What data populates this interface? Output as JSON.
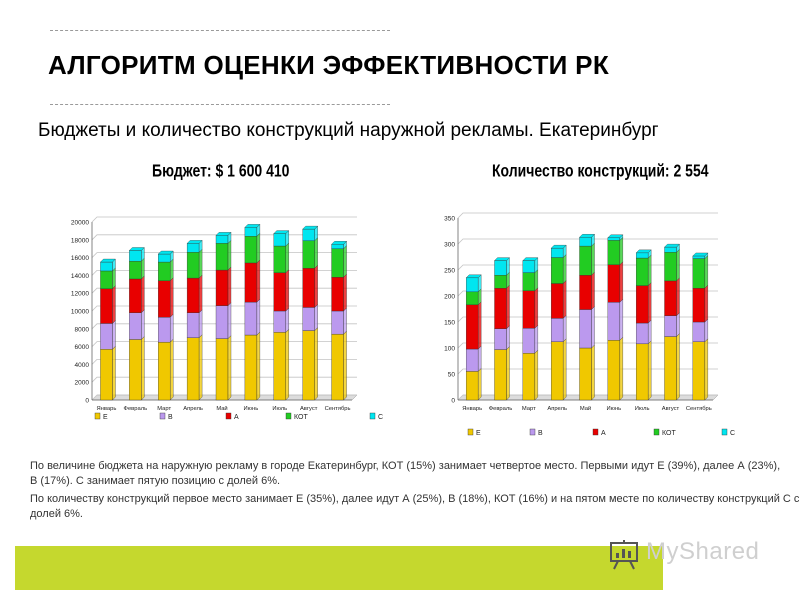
{
  "title": "АЛГОРИТМ ОЦЕНКИ ЭФФЕКТИВНОСТИ РК",
  "subtitle": "Бюджеты и количество конструкций наружной рекламы. Екатеринбург",
  "paragraphs": [
    "По величине бюджета на наружную рекламу в городе Екатеринбург, КОТ (15%) занимает четвертое место. Первыми идут Е (39%), далее А (23%), В (17%). С занимает пятую позицию с долей 6%.",
    "По количеству конструкций первое место занимает Е (35%), далее идут А (25%), В (18%), КОТ (16%) и на пятом месте по количеству конструкций С с долей 6%."
  ],
  "logo": {
    "text": "MyShared",
    "icon": "presentation-board-icon"
  },
  "colors": {
    "E": "#f0c800",
    "B": "#bb99ee",
    "A": "#e80000",
    "KOT": "#22cc22",
    "C": "#00e6f0",
    "band": "#c5d82e"
  },
  "chart_data": [
    {
      "type": "bar",
      "stacked": true,
      "title": "Бюджет: $ 1 600 410",
      "categories": [
        "Январь",
        "Февраль",
        "Март",
        "Апрель",
        "Май",
        "Июнь",
        "Июль",
        "Август",
        "Сентябрь"
      ],
      "ylim": [
        0,
        20000
      ],
      "yticks": [
        "0",
        "2000",
        "4000",
        "6000",
        "8000",
        "10000",
        "12000",
        "14000",
        "16000",
        "18000",
        "20000"
      ],
      "grid": true,
      "legend": "bottom",
      "series": [
        {
          "name": "Е",
          "color": "#f0c800",
          "values": [
            5700,
            6800,
            6500,
            7000,
            6900,
            7300,
            7600,
            7800,
            7400
          ]
        },
        {
          "name": "В",
          "color": "#bb99ee",
          "values": [
            2900,
            3000,
            2800,
            2800,
            3700,
            3700,
            2400,
            2600,
            2600
          ]
        },
        {
          "name": "А",
          "color": "#e80000",
          "values": [
            3900,
            3800,
            4100,
            3900,
            4000,
            4400,
            4300,
            4400,
            3800
          ]
        },
        {
          "name": "КОТ",
          "color": "#22cc22",
          "values": [
            2000,
            2000,
            2100,
            2900,
            3000,
            3000,
            3000,
            3100,
            3200
          ]
        },
        {
          "name": "С",
          "color": "#00e6f0",
          "values": [
            1000,
            1200,
            900,
            1000,
            900,
            1000,
            1400,
            1300,
            500
          ]
        }
      ]
    },
    {
      "type": "bar",
      "stacked": true,
      "title": "Количество конструкций: 2 554",
      "categories": [
        "Январь",
        "Февраль",
        "Март",
        "Апрель",
        "Май",
        "Июнь",
        "Июль",
        "Август",
        "Сентябрь"
      ],
      "ylim": [
        0,
        350
      ],
      "yticks": [
        "0",
        "50",
        "100",
        "150",
        "200",
        "250",
        "300",
        "350"
      ],
      "grid": true,
      "legend": "bottom",
      "series": [
        {
          "name": "Е",
          "color": "#f0c800",
          "values": [
            55,
            97,
            90,
            112,
            100,
            115,
            108,
            122,
            112
          ]
        },
        {
          "name": "В",
          "color": "#bb99ee",
          "values": [
            43,
            40,
            48,
            45,
            74,
            73,
            40,
            40,
            38
          ]
        },
        {
          "name": "А",
          "color": "#e80000",
          "values": [
            85,
            78,
            72,
            67,
            66,
            72,
            72,
            67,
            65
          ]
        },
        {
          "name": "КОТ",
          "color": "#22cc22",
          "values": [
            25,
            25,
            35,
            50,
            56,
            47,
            53,
            55,
            57
          ]
        },
        {
          "name": "С",
          "color": "#00e6f0",
          "values": [
            27,
            28,
            23,
            18,
            17,
            5,
            10,
            10,
            5
          ]
        }
      ]
    }
  ]
}
